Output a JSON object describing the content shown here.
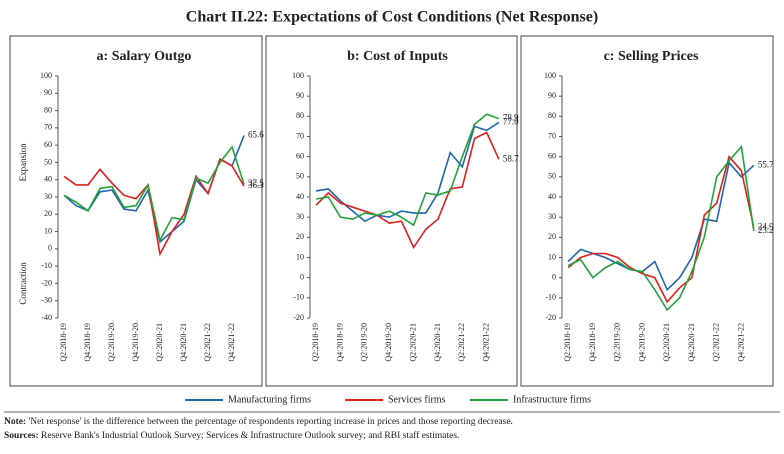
{
  "title": "Chart II.22: Expectations of Cost Conditions (Net Response)",
  "chart_data": [
    {
      "type": "line",
      "title": "a: Salary Outgo",
      "ylabel_upper": "Expansion",
      "ylabel_lower": "Contraction",
      "categories": [
        "Q2:2018-19",
        null,
        "Q4:2018-19",
        null,
        "Q2:2019-20",
        null,
        "Q4:2019-20",
        null,
        "Q2:2020-21",
        null,
        "Q4:2020-21",
        null,
        "Q2:2021-22",
        null,
        "Q4:2021-22",
        null
      ],
      "ylim": [
        -40,
        100
      ],
      "yticks": [
        -40,
        -30,
        -20,
        -10,
        0,
        10,
        20,
        30,
        40,
        50,
        60,
        70,
        80,
        90,
        100
      ],
      "series": [
        {
          "name": "Manufacturing firms",
          "color": "#1f66b0",
          "values": [
            31,
            25,
            22,
            33,
            34,
            23,
            22,
            34,
            4,
            10,
            16,
            40,
            32,
            52,
            48,
            65.6
          ],
          "value_labels": [
            null,
            null,
            null,
            null,
            null,
            null,
            null,
            null,
            null,
            null,
            null,
            null,
            null,
            null,
            null,
            "65.6"
          ]
        },
        {
          "name": "Services firms",
          "color": "#e0201b",
          "values": [
            42,
            37,
            37,
            46,
            38,
            31,
            29,
            37,
            -3,
            10,
            20,
            42,
            32,
            52,
            48,
            36.3
          ],
          "value_labels": [
            null,
            null,
            null,
            null,
            null,
            null,
            null,
            null,
            null,
            null,
            null,
            null,
            null,
            null,
            null,
            "36.3"
          ]
        },
        {
          "name": "Infrastructure firms",
          "color": "#22a33a",
          "values": [
            31,
            27,
            22,
            35,
            36,
            24,
            25,
            37,
            5,
            18,
            17,
            41,
            38,
            50,
            59,
            37.5
          ],
          "value_labels": [
            null,
            null,
            null,
            null,
            null,
            null,
            null,
            null,
            null,
            null,
            null,
            null,
            null,
            null,
            null,
            "37.5"
          ]
        }
      ]
    },
    {
      "type": "line",
      "title": "b: Cost of Inputs",
      "categories": [
        "Q2:2018-19",
        null,
        "Q4:2018-19",
        null,
        "Q2:2019-20",
        null,
        "Q4:2019-20",
        null,
        "Q2:2020-21",
        null,
        "Q4:2020-21",
        null,
        "Q2:2021-22",
        null,
        "Q4:2021-22",
        null
      ],
      "ylim": [
        -20,
        100
      ],
      "yticks": [
        -20,
        -10,
        0,
        10,
        20,
        30,
        40,
        50,
        60,
        70,
        80,
        90,
        100
      ],
      "series": [
        {
          "name": "Manufacturing firms",
          "color": "#1f66b0",
          "values": [
            43,
            44,
            38,
            33,
            28,
            31,
            30,
            33,
            32,
            32,
            42,
            62,
            55,
            75,
            73,
            77.0
          ],
          "value_labels": [
            null,
            null,
            null,
            null,
            null,
            null,
            null,
            null,
            null,
            null,
            null,
            null,
            null,
            null,
            null,
            "77.0"
          ]
        },
        {
          "name": "Services firms",
          "color": "#e0201b",
          "values": [
            36,
            42,
            37,
            35,
            33,
            31,
            27,
            28,
            15,
            24,
            29,
            44,
            45,
            69,
            72,
            58.7
          ],
          "value_labels": [
            null,
            null,
            null,
            null,
            null,
            null,
            null,
            null,
            null,
            null,
            null,
            null,
            null,
            null,
            null,
            "58.7"
          ]
        },
        {
          "name": "Infrastructure firms",
          "color": "#22a33a",
          "values": [
            39,
            40,
            30,
            29,
            32,
            31,
            33,
            30,
            26,
            42,
            41,
            43,
            60,
            76,
            81,
            78.9
          ],
          "value_labels": [
            null,
            null,
            null,
            null,
            null,
            null,
            null,
            null,
            null,
            null,
            null,
            null,
            null,
            null,
            null,
            "78.9"
          ]
        }
      ]
    },
    {
      "type": "line",
      "title": "c: Selling Prices",
      "categories": [
        "Q2:2018-19",
        null,
        "Q4:2018-19",
        null,
        "Q2:2019-20",
        null,
        "Q4:2019-20",
        null,
        "Q2:2020-21",
        null,
        "Q4:2020-21",
        null,
        "Q2:2021-22",
        null,
        "Q4:2021-22",
        null
      ],
      "ylim": [
        -20,
        100
      ],
      "yticks": [
        -20,
        -10,
        0,
        10,
        20,
        30,
        40,
        50,
        60,
        70,
        80,
        90,
        100
      ],
      "series": [
        {
          "name": "Manufacturing firms",
          "color": "#1f66b0",
          "values": [
            8,
            14,
            12,
            10,
            7,
            4,
            3,
            8,
            -6,
            0,
            10,
            29,
            28,
            57,
            50,
            55.7
          ],
          "value_labels": [
            null,
            null,
            null,
            null,
            null,
            null,
            null,
            null,
            null,
            null,
            null,
            null,
            null,
            null,
            null,
            "55.7"
          ]
        },
        {
          "name": "Services firms",
          "color": "#e0201b",
          "values": [
            5,
            10,
            12,
            12,
            10,
            5,
            2,
            0,
            -12,
            -5,
            0,
            31,
            37,
            60,
            53,
            24.9
          ],
          "value_labels": [
            null,
            null,
            null,
            null,
            null,
            null,
            null,
            null,
            null,
            null,
            null,
            null,
            null,
            null,
            null,
            "24.9"
          ]
        },
        {
          "name": "Infrastructure firms",
          "color": "#22a33a",
          "values": [
            6,
            9,
            0,
            5,
            8,
            4,
            3,
            -6,
            -16,
            -10,
            3,
            20,
            50,
            58,
            65,
            23.2
          ],
          "value_labels": [
            null,
            null,
            null,
            null,
            null,
            null,
            null,
            null,
            null,
            null,
            null,
            null,
            null,
            null,
            null,
            "23.2"
          ]
        }
      ]
    }
  ],
  "note": {
    "label": "Note:",
    "text": " 'Net response' is the difference between the percentage of respondents reporting increase in prices and those reporting decrease."
  },
  "sources": {
    "label": "Sources:",
    "text": " Reserve Bank's Industrial Outlook Survey; Services & Infrastructure Outlook survey; and RBI staff estimates."
  }
}
